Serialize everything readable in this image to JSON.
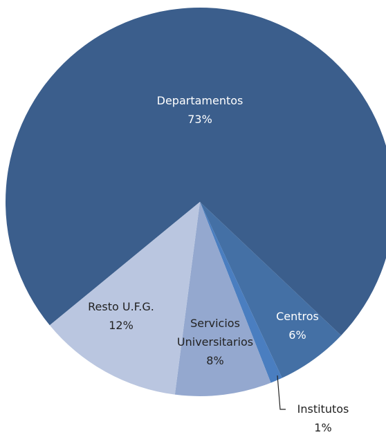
{
  "chart_data": {
    "type": "pie",
    "categories": [
      "Departamentos",
      "Centros",
      "Institutos",
      "Servicios Universitarios",
      "Resto U.F.G."
    ],
    "values": [
      73,
      6,
      1,
      8,
      12
    ],
    "value_labels": [
      "73%",
      "6%",
      "1%",
      "8%",
      "12%"
    ],
    "colors": [
      "#3b5e8c",
      "#4470a5",
      "#4a7ec0",
      "#94a8cf",
      "#bac6e0"
    ]
  }
}
